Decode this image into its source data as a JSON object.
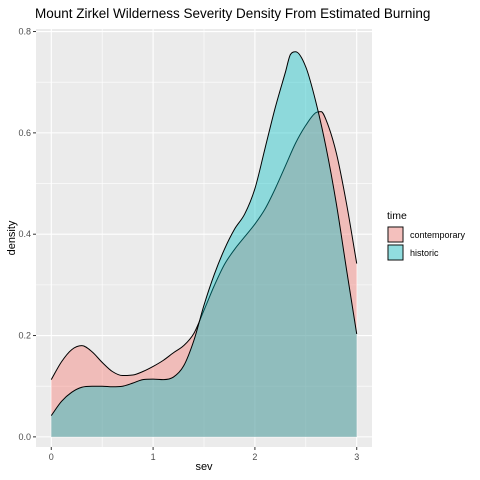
{
  "chart_data": {
    "type": "area",
    "title": "Mount Zirkel Wilderness Severity Density From Estimated Burning",
    "xlabel": "sev",
    "ylabel": "density",
    "xlim": [
      -0.15,
      3.15
    ],
    "ylim": [
      -0.02,
      0.805
    ],
    "x_ticks": [
      0,
      1,
      2,
      3
    ],
    "x_tick_labels": [
      "0",
      "1",
      "2",
      "3"
    ],
    "y_ticks": [
      0.0,
      0.2,
      0.4,
      0.6,
      0.8
    ],
    "y_tick_labels": [
      "0.0",
      "0.2",
      "0.4",
      "0.6",
      "0.8"
    ],
    "grid": true,
    "legend": {
      "title": "time",
      "position": "right"
    },
    "series": [
      {
        "name": "contemporary",
        "fill": "#F8766D",
        "x": [
          0,
          0.1,
          0.2,
          0.3,
          0.4,
          0.5,
          0.6,
          0.7,
          0.8,
          0.9,
          1.0,
          1.1,
          1.2,
          1.3,
          1.4,
          1.5,
          1.6,
          1.7,
          1.8,
          1.9,
          2.0,
          2.1,
          2.2,
          2.3,
          2.4,
          2.5,
          2.6,
          2.65,
          2.7,
          2.8,
          2.9,
          3.0
        ],
        "values": [
          0.113,
          0.148,
          0.172,
          0.18,
          0.168,
          0.147,
          0.129,
          0.121,
          0.122,
          0.129,
          0.139,
          0.151,
          0.166,
          0.18,
          0.204,
          0.25,
          0.298,
          0.34,
          0.37,
          0.395,
          0.42,
          0.45,
          0.49,
          0.535,
          0.58,
          0.615,
          0.64,
          0.642,
          0.625,
          0.56,
          0.46,
          0.342
        ]
      },
      {
        "name": "historic",
        "fill": "#00BFC4",
        "x": [
          0,
          0.1,
          0.2,
          0.3,
          0.4,
          0.5,
          0.6,
          0.7,
          0.8,
          0.9,
          1.0,
          1.1,
          1.2,
          1.3,
          1.4,
          1.5,
          1.6,
          1.7,
          1.8,
          1.9,
          2.0,
          2.1,
          2.2,
          2.3,
          2.35,
          2.4,
          2.5,
          2.6,
          2.7,
          2.8,
          2.9,
          3.0
        ],
        "values": [
          0.042,
          0.07,
          0.088,
          0.098,
          0.1,
          0.1,
          0.099,
          0.1,
          0.106,
          0.113,
          0.114,
          0.113,
          0.118,
          0.14,
          0.19,
          0.26,
          0.32,
          0.37,
          0.41,
          0.44,
          0.49,
          0.57,
          0.65,
          0.72,
          0.755,
          0.76,
          0.73,
          0.66,
          0.57,
          0.46,
          0.33,
          0.203
        ]
      }
    ]
  }
}
